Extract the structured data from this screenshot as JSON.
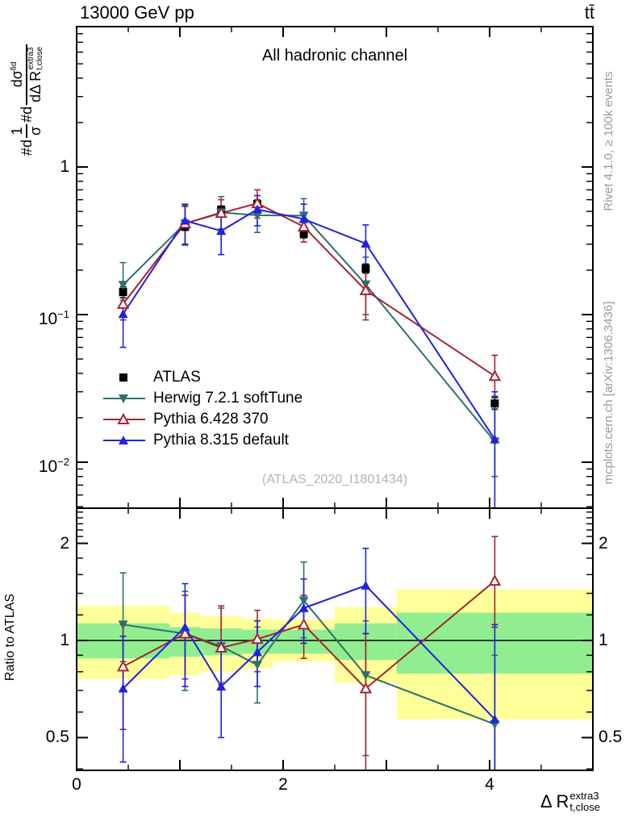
{
  "header": {
    "beam": "13000 GeV pp",
    "process": "tt̄",
    "title": "All hadronic channel",
    "watermark": "(ATLAS_2020_I1801434)"
  },
  "side_texts": {
    "right_top": "Rivet 4.1.0, ≥ 100k events",
    "right_bottom": "mcplots.cern.ch [arXiv:1306.3436]"
  },
  "ylabel_main": {
    "pre1": "#d",
    "f1num": "1",
    "f1den": "σ",
    "pre2": "#d",
    "f2num": "dσ",
    "f2numsup": "fid",
    "f2den": "dΔ R",
    "f2densub": "t,close",
    "f2densup": "extra3"
  },
  "axes": {
    "x": {
      "label_prefix": "Δ R",
      "label_sub": "t,close",
      "label_sup": "extra3",
      "min": 0,
      "max": 5,
      "minor_step": 0.5,
      "tick_labels": [
        {
          "v": 0,
          "t": "0"
        },
        {
          "v": 2,
          "t": "2"
        },
        {
          "v": 4,
          "t": "4"
        }
      ]
    },
    "y_main": {
      "scale": "log",
      "min": 0.0049,
      "max": 8.9,
      "tick_labels": [
        {
          "v": 1,
          "base": "1",
          "exp": ""
        },
        {
          "v": 0.1,
          "base": "10",
          "exp": "−1"
        },
        {
          "v": 0.01,
          "base": "10",
          "exp": "−2"
        }
      ]
    },
    "y_ratio": {
      "scale": "log",
      "label": "Ratio to ATLAS",
      "min": 0.396,
      "max": 2.57,
      "tick_labels": [
        {
          "v": 2,
          "t": "2"
        },
        {
          "v": 1,
          "t": "1"
        },
        {
          "v": 0.5,
          "t": "0.5"
        }
      ],
      "minor_ticks": [
        0.4,
        0.6,
        0.7,
        0.8,
        0.9,
        1.2,
        1.4,
        1.6,
        1.8,
        2.1,
        2.2,
        2.3,
        2.4,
        2.5
      ]
    }
  },
  "chart_data": {
    "type": "line",
    "title": "All hadronic channel",
    "xlabel": "ΔR_t,close^extra3",
    "ylabel": "#d 1/σ #d dσ^fid / dΔR_t,close^extra3",
    "x_range": [
      0,
      5
    ],
    "y_main_range": [
      0.0049,
      8.9
    ],
    "y_ratio_range": [
      0.396,
      2.57
    ],
    "x": [
      0.45,
      1.05,
      1.4,
      1.75,
      2.2,
      2.8,
      4.05
    ],
    "bin_edges": [
      0,
      0.9,
      1.2,
      1.6,
      1.9,
      2.5,
      3.1,
      5.0
    ],
    "series": [
      {
        "key": "atlas",
        "label": "ATLAS",
        "color": "#000000",
        "marker": "square-filled",
        "line": false,
        "values": [
          0.142,
          0.394,
          0.513,
          0.561,
          0.352,
          0.205,
          0.025
        ],
        "err_lo": [
          0.13,
          0.372,
          0.484,
          0.53,
          0.331,
          0.191,
          0.0228
        ],
        "err_hi": [
          0.154,
          0.418,
          0.544,
          0.595,
          0.374,
          0.22,
          0.0274
        ]
      },
      {
        "key": "herwig",
        "label": "Herwig 7.2.1 softTune",
        "color": "#2e7070",
        "marker": "triangle-down-filled",
        "line": true,
        "values": [
          0.159,
          0.414,
          0.492,
          0.471,
          0.468,
          0.16,
          0.0138
        ],
        "err_lo": [
          0.125,
          0.295,
          0.38,
          0.36,
          0.37,
          0.1,
          0.008
        ],
        "err_hi": [
          0.225,
          0.55,
          0.63,
          0.6,
          0.61,
          0.245,
          0.023
        ],
        "ratio": [
          1.12,
          1.05,
          0.96,
          0.84,
          1.33,
          0.78,
          0.55
        ],
        "ratio_err_lo": [
          0.86,
          0.7,
          0.74,
          0.64,
          1.02,
          0.44,
          0.3
        ],
        "ratio_err_hi": [
          1.62,
          1.42,
          1.26,
          1.1,
          1.75,
          1.15,
          0.9
        ]
      },
      {
        "key": "pythia6",
        "label": "Pythia 6.428 370",
        "color": "#a62433",
        "marker": "triangle-up-open",
        "line": true,
        "values": [
          0.118,
          0.414,
          0.487,
          0.567,
          0.394,
          0.146,
          0.0383
        ],
        "err_lo": [
          0.092,
          0.3,
          0.37,
          0.45,
          0.31,
          0.092,
          0.028
        ],
        "err_hi": [
          0.15,
          0.54,
          0.6,
          0.7,
          0.49,
          0.215,
          0.053
        ],
        "ratio": [
          0.83,
          1.05,
          0.95,
          1.01,
          1.12,
          0.71,
          1.53
        ],
        "ratio_err_lo": [
          0.53,
          0.76,
          0.73,
          0.8,
          0.88,
          0.38,
          1.1
        ],
        "ratio_err_hi": [
          1.12,
          1.38,
          1.28,
          1.24,
          1.38,
          1.05,
          2.1
        ]
      },
      {
        "key": "pythia8",
        "label": "Pythia 8.315 default",
        "color": "#2222dd",
        "marker": "triangle-up-filled",
        "line": true,
        "values": [
          0.101,
          0.433,
          0.369,
          0.516,
          0.444,
          0.303,
          0.0143
        ],
        "err_lo": [
          0.06,
          0.3,
          0.255,
          0.4,
          0.345,
          0.215,
          0.004
        ],
        "err_hi": [
          0.148,
          0.56,
          0.48,
          0.64,
          0.56,
          0.405,
          0.03
        ],
        "ratio": [
          0.71,
          1.1,
          0.72,
          0.92,
          1.26,
          1.48,
          0.57
        ],
        "ratio_err_lo": [
          0.42,
          0.72,
          0.5,
          0.72,
          0.98,
          1.05,
          0.28
        ],
        "ratio_err_hi": [
          1.03,
          1.5,
          1.0,
          1.15,
          1.55,
          1.93,
          1.12
        ]
      }
    ],
    "ratio_panel": {
      "reference": 1,
      "yellow_color": "#ffff99",
      "green_color": "#90ee90",
      "bins": [
        {
          "x0": 0.0,
          "x1": 0.9,
          "yellow": [
            0.76,
            1.28
          ],
          "green": [
            0.88,
            1.13
          ]
        },
        {
          "x0": 0.9,
          "x1": 1.2,
          "yellow": [
            0.78,
            1.22
          ],
          "green": [
            0.89,
            1.1
          ]
        },
        {
          "x0": 1.2,
          "x1": 1.6,
          "yellow": [
            0.8,
            1.19
          ],
          "green": [
            0.9,
            1.09
          ]
        },
        {
          "x0": 1.6,
          "x1": 1.9,
          "yellow": [
            0.82,
            1.17
          ],
          "green": [
            0.91,
            1.08
          ]
        },
        {
          "x0": 1.9,
          "x1": 2.5,
          "yellow": [
            0.86,
            1.16
          ],
          "green": [
            0.91,
            1.08
          ]
        },
        {
          "x0": 2.5,
          "x1": 3.1,
          "yellow": [
            0.74,
            1.27
          ],
          "green": [
            0.87,
            1.13
          ]
        },
        {
          "x0": 3.1,
          "x1": 5.0,
          "yellow": [
            0.57,
            1.44
          ],
          "green": [
            0.79,
            1.22
          ]
        }
      ]
    },
    "legend_position": "middle-left",
    "grid": false
  }
}
